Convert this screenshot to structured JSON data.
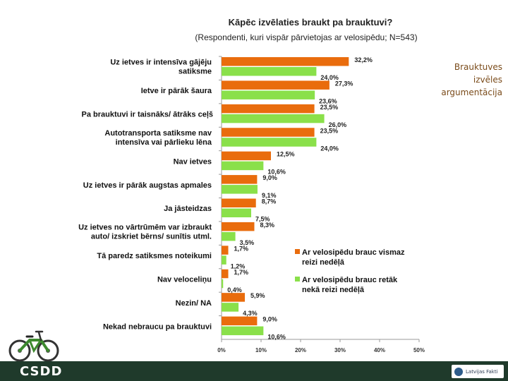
{
  "side_note": "Brauktuves izvēles argumentācija",
  "footer": {
    "csdd_logo": "CSDD",
    "partner_logo": "Latvijas Fakti"
  },
  "colors": {
    "series1": "#e96c0d",
    "series2": "#8ae04a",
    "bottom_bar": "#1f3a2b"
  },
  "chart_data": {
    "type": "bar",
    "orientation": "horizontal",
    "title": "Kāpēc izvēlaties braukt pa brauktuvi?",
    "subtitle": "(Respondenti, kuri vispār pārvietojas ar velosipēdu; N=543)",
    "categories": [
      "Uz ietves ir intensīva gājēju satiksme",
      "Ietve ir pārāk šaura",
      "Pa brauktuvi ir taisnāks/ ātrāks ceļš",
      "Autotransporta satiksme nav intensīva vai pārlieku lēna",
      "Nav ietves",
      "Uz ietves ir pārāk augstas apmales",
      "Ja jāsteidzas",
      "Uz ietves no vārtrūmēm var izbraukt auto/ izskriet bērns/ sunītis utml.",
      "Tā paredz satiksmes noteikumi",
      "Nav veloceliņu",
      "Nezin/ NA",
      "Nekad nebraucu pa brauktuvi"
    ],
    "series": [
      {
        "name": "Ar velosipēdu brauc vismaz reizi nedēļā",
        "values": [
          32.2,
          27.3,
          23.5,
          23.5,
          12.5,
          9.0,
          8.7,
          8.3,
          1.7,
          1.7,
          5.9,
          9.0
        ],
        "labels": [
          "32,2%",
          "27,3%",
          "23,5%",
          "23,5%",
          "12,5%",
          "9,0%",
          "8,7%",
          "8,3%",
          "1,7%",
          "1,7%",
          "5,9%",
          "9,0%"
        ]
      },
      {
        "name": "Ar velosipēdu brauc retāk nekā reizi nedēļā",
        "values": [
          24.0,
          23.6,
          26.0,
          24.0,
          10.6,
          9.1,
          7.5,
          3.5,
          1.2,
          0.4,
          4.3,
          10.6
        ],
        "labels": [
          "24,0%",
          "23,6%",
          "26,0%",
          "24,0%",
          "10,6%",
          "9,1%",
          "7,5%",
          "3,5%",
          "1,2%",
          "0,4%",
          "4,3%",
          "10,6%"
        ]
      }
    ],
    "xlim": [
      0,
      50
    ],
    "xticks": [
      "0%",
      "10%",
      "20%",
      "30%",
      "40%",
      "50%"
    ],
    "legend_position": "right"
  }
}
